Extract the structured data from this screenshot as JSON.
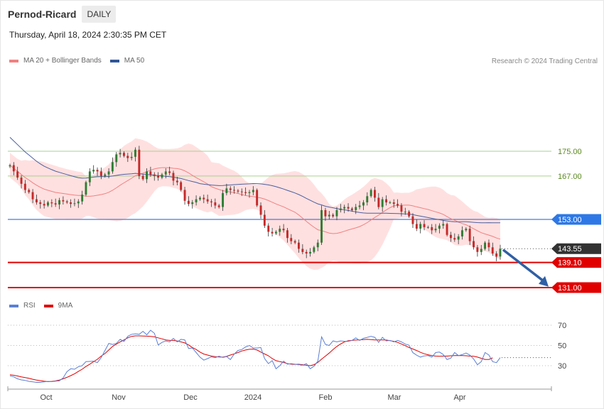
{
  "header": {
    "ticker": "Pernod-Ricard",
    "timeframe": "DAILY",
    "datetime": "Thursday, April 18, 2024 2:30:35 PM CET",
    "credit": "Research © 2024 Trading Central"
  },
  "legend_price": [
    {
      "label": "MA 20 + Bollinger Bands",
      "color": "#f08080"
    },
    {
      "label": "MA 50",
      "color": "#2f5597"
    }
  ],
  "legend_rsi": [
    {
      "label": "RSI",
      "color": "#5b7fd6"
    },
    {
      "label": "9MA",
      "color": "#e00000"
    }
  ],
  "colors": {
    "bull": "#2e7d32",
    "bear": "#c62828",
    "ma20": "#f08080",
    "bands": "#ffd6d6",
    "ma50": "#4a5fa0",
    "support": "#e00000",
    "resistance_green": "#a8d08d",
    "pivot": "#4a7bd6",
    "current": "#333333",
    "arrow": "#2f5fa5"
  },
  "chart_data": [
    {
      "type": "candlestick",
      "title": "Pernod-Ricard",
      "period": "DAILY",
      "x_ticks": [
        "Oct",
        "Nov",
        "Dec",
        "2024",
        "Feb",
        "Mar",
        "Apr"
      ],
      "ylim": [
        126,
        188
      ],
      "levels": [
        {
          "value": 175.0,
          "label": "175.00",
          "kind": "resistance"
        },
        {
          "value": 167.0,
          "label": "167.00",
          "kind": "resistance"
        },
        {
          "value": 153.0,
          "label": "153.00",
          "kind": "pivot"
        },
        {
          "value": 143.55,
          "label": "143.55",
          "kind": "current"
        },
        {
          "value": 139.1,
          "label": "139.10",
          "kind": "support"
        },
        {
          "value": 131.0,
          "label": "131.00",
          "kind": "support"
        }
      ],
      "closes": [
        170.5,
        168.5,
        166.5,
        164.5,
        162.5,
        161.8,
        159.5,
        158.5,
        158.0,
        157.5,
        158.5,
        158.2,
        157.8,
        159.2,
        158.8,
        158.5,
        158.0,
        158.2,
        158.8,
        161.0,
        165.0,
        168.5,
        169.0,
        168.5,
        167.0,
        167.5,
        168.5,
        171.5,
        174.0,
        174.5,
        173.5,
        172.8,
        173.2,
        175.5,
        167.0,
        166.0,
        168.5,
        167.5,
        167.0,
        166.5,
        167.5,
        168.5,
        168.0,
        165.5,
        165.0,
        162.5,
        159.0,
        158.0,
        158.5,
        159.5,
        160.0,
        159.5,
        158.8,
        158.5,
        157.5,
        157.0,
        161.5,
        163.0,
        162.5,
        162.3,
        162.0,
        161.8,
        161.5,
        161.8,
        162.5,
        157.5,
        154.5,
        151.0,
        149.0,
        148.5,
        149.0,
        150.0,
        149.5,
        147.0,
        146.0,
        145.5,
        143.5,
        142.5,
        142.0,
        142.5,
        144.0,
        145.5,
        156.0,
        154.0,
        154.5,
        154.0,
        156.0,
        156.5,
        157.0,
        156.5,
        156.0,
        157.0,
        157.5,
        158.5,
        160.5,
        162.5,
        160.0,
        157.0,
        159.5,
        158.5,
        158.5,
        158.0,
        157.5,
        155.5,
        155.5,
        154.0,
        151.5,
        150.0,
        151.5,
        150.5,
        150.5,
        149.5,
        150.0,
        151.0,
        151.5,
        148.0,
        147.0,
        146.5,
        147.5,
        149.5,
        150.0,
        146.0,
        144.0,
        142.5,
        143.5,
        145.5,
        144.0,
        142.0,
        141.0,
        143.55
      ]
    },
    {
      "type": "line",
      "title": "RSI",
      "yticks": [
        30,
        50,
        70
      ],
      "ylim": [
        10,
        80
      ],
      "series": [
        {
          "name": "RSI",
          "values": [
            20,
            19,
            17,
            16,
            15.5,
            14.5,
            14,
            13.5,
            13.5,
            14,
            14.5,
            14.2,
            14.8,
            15,
            18,
            24,
            27,
            26.5,
            29,
            30,
            34,
            34.2,
            34.5,
            33,
            38,
            45,
            52,
            51,
            52,
            56,
            54,
            59,
            61,
            61.5,
            61,
            64,
            60.5,
            65,
            62,
            50.5,
            53,
            54.5,
            53.5,
            57,
            53.5,
            56,
            55.5,
            47,
            47.5,
            43,
            38.5,
            35.5,
            37,
            38.7,
            38,
            39.3,
            38.2,
            39,
            36,
            41.5,
            45,
            46,
            48.5,
            50,
            47.5,
            47.5,
            48,
            37,
            32,
            35,
            27,
            30,
            34.5,
            31.5,
            32,
            31.5,
            31,
            30.5,
            32,
            27,
            29.5,
            34.5,
            58.5,
            51,
            50,
            54.5,
            53.5,
            54.5,
            54,
            54,
            55,
            57.5,
            55,
            57,
            58,
            59,
            58,
            53,
            58,
            54.5,
            55,
            53.5,
            55,
            53.5,
            51.3,
            50.2,
            42.9,
            40.4,
            38.5,
            39.7,
            40,
            38.5,
            43,
            43.5,
            41,
            36,
            37.5,
            43,
            40,
            41,
            42.5,
            40.5,
            36.5,
            31,
            34,
            43,
            40.5,
            34,
            33,
            38
          ]
        },
        {
          "name": "9MA",
          "values": [
            21,
            20.5,
            19.8,
            19,
            18.3,
            17.5,
            16.6,
            15.8,
            15.2,
            14.6,
            14.2,
            14.5,
            15,
            15.8,
            17,
            18.5,
            20.2,
            22,
            24.3,
            26.5,
            29.2,
            31.5,
            34,
            36.3,
            39.5,
            42,
            45.5,
            49,
            51.3,
            53.5,
            55.5,
            57.5,
            59,
            59.5,
            59.5,
            59.3,
            59.2,
            59,
            58.5,
            57.5,
            56.5,
            55.5,
            55,
            55,
            54.5,
            53.5,
            52.5,
            50.5,
            48,
            46,
            43.5,
            41.5,
            40.5,
            39.5,
            39,
            38.6,
            38.5,
            39.2,
            40.5,
            41.7,
            43,
            44.5,
            45.5,
            46.2,
            46.4,
            45.5,
            43.5,
            41.6,
            39.8,
            37,
            35,
            34,
            33.2,
            32,
            31.5,
            31.3,
            31.4,
            31,
            30.4,
            30,
            31,
            33.2,
            36.5,
            39.5,
            42.5,
            46,
            49,
            51.5,
            53.5,
            54.6,
            55,
            55.3,
            55.5,
            55.8,
            56,
            55.8,
            55.5,
            55.5,
            55.5,
            55.3,
            54.7,
            54,
            53,
            51.5,
            49.8,
            48,
            46.5,
            45,
            43.2,
            41.8,
            40.8,
            40,
            39.5,
            39.3,
            39.5,
            39.5,
            39.8,
            40,
            40.1,
            40,
            39.8,
            39.5,
            39.3,
            38.5,
            37.3,
            36.2,
            36.2,
            37.7
          ]
        }
      ]
    }
  ]
}
